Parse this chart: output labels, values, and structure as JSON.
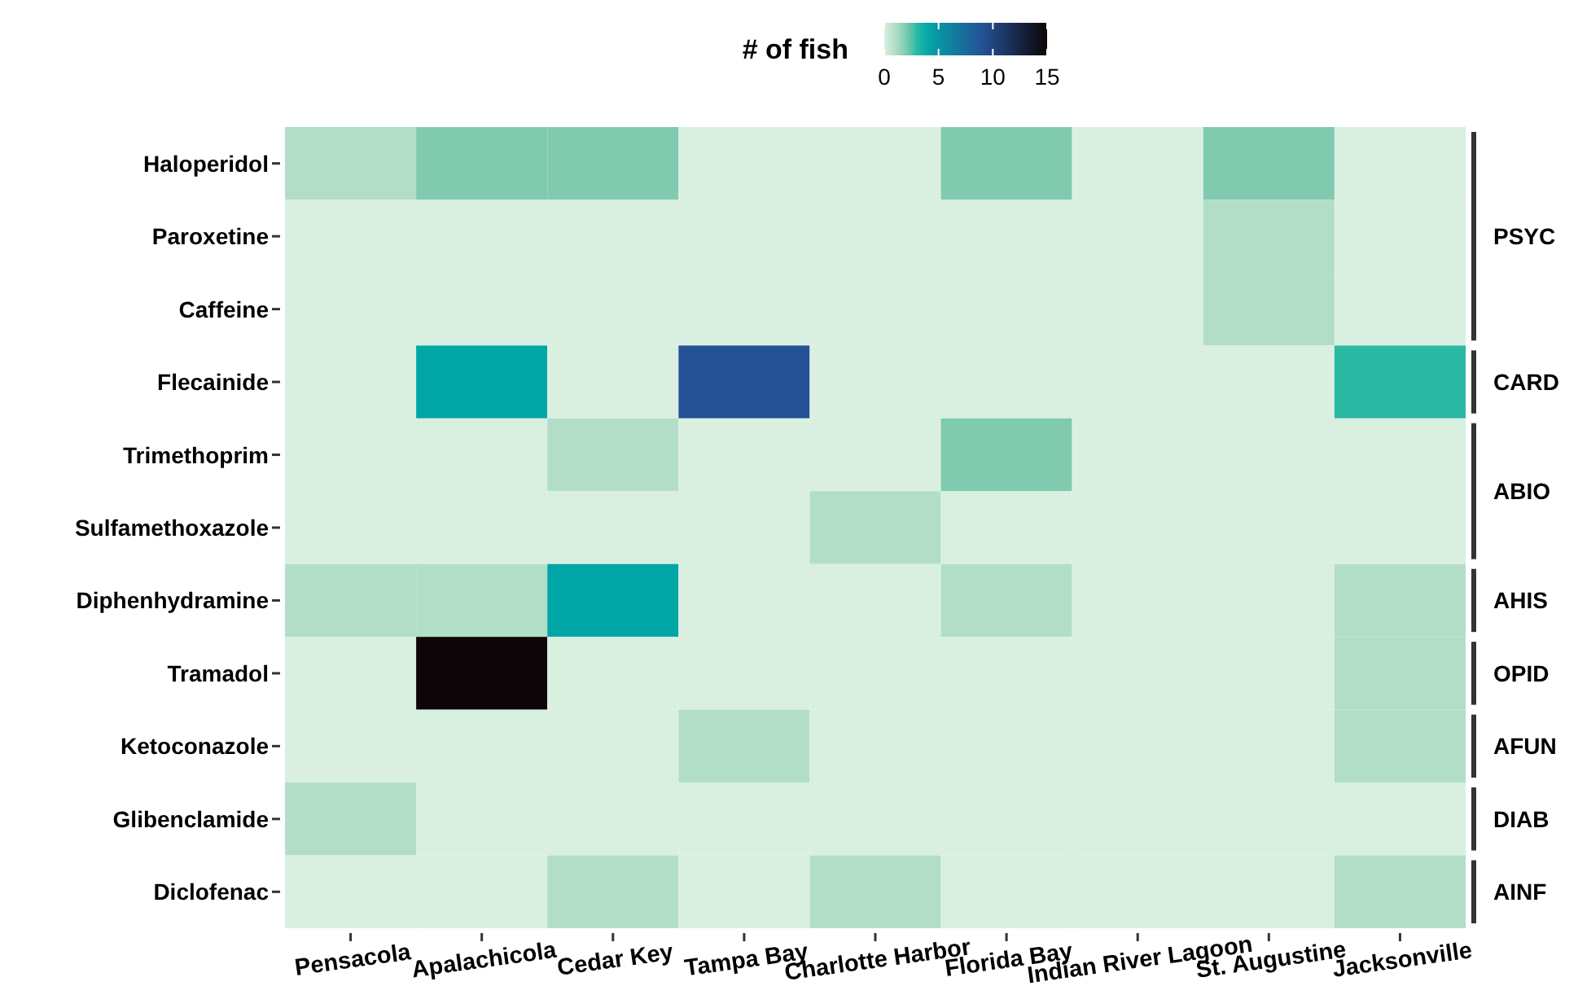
{
  "chart_data": {
    "type": "heatmap",
    "clabel": "# of fish",
    "categories": [
      "Pensacola",
      "Apalachicola",
      "Cedar Key",
      "Tampa Bay",
      "Charlotte Harbor",
      "Florida Bay",
      "Indian River Lagoon",
      "St. Augustine",
      "Jacksonville"
    ],
    "y_categories": [
      "Haloperidol",
      "Paroxetine",
      "Caffeine",
      "Flecainide",
      "Trimethoprim",
      "Sulfamethoxazole",
      "Diphenhydramine",
      "Tramadol",
      "Ketoconazole",
      "Glibenclamide",
      "Diclofenac"
    ],
    "annotations": [
      "PSYC",
      "CARD",
      "ABIO",
      "AHIS",
      "OPID",
      "AFUN",
      "DIAB",
      "AINF"
    ],
    "cells": [
      [
        1,
        2,
        2,
        0,
        0,
        2,
        0,
        2,
        0
      ],
      [
        0,
        0,
        0,
        0,
        0,
        0,
        0,
        1,
        0
      ],
      [
        0,
        0,
        0,
        0,
        0,
        0,
        0,
        1,
        0
      ],
      [
        0,
        4,
        0,
        9,
        0,
        0,
        0,
        0,
        3
      ],
      [
        0,
        0,
        1,
        0,
        0,
        2,
        0,
        0,
        0
      ],
      [
        0,
        0,
        0,
        0,
        1,
        0,
        0,
        0,
        0
      ],
      [
        1,
        1,
        4,
        0,
        0,
        1,
        0,
        0,
        1
      ],
      [
        0,
        15,
        0,
        0,
        0,
        0,
        0,
        0,
        1
      ],
      [
        0,
        0,
        0,
        1,
        0,
        0,
        0,
        0,
        1
      ],
      [
        1,
        0,
        0,
        0,
        0,
        0,
        0,
        0,
        0
      ],
      [
        0,
        0,
        1,
        0,
        1,
        0,
        0,
        0,
        1
      ]
    ],
    "clim": [
      0,
      15
    ],
    "cticks": [
      0,
      5,
      10,
      15
    ]
  }
}
